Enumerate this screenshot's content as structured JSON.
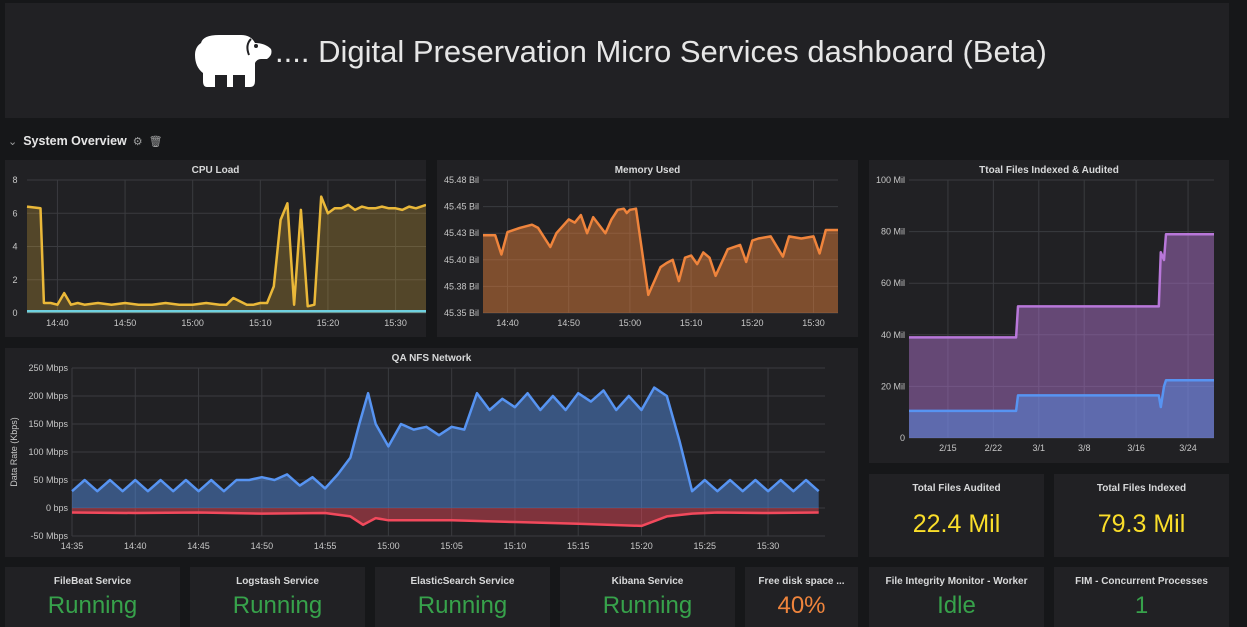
{
  "header": {
    "title": ".... Digital Preservation Micro Services dashboard (Beta)",
    "logo_icon": "elephant-icon"
  },
  "row": {
    "title": "System Overview",
    "collapse_icon": "chevron-down-icon",
    "settings_icon": "gear-icon",
    "delete_icon": "trash-icon"
  },
  "colors": {
    "yellow": "#eab839",
    "cyan": "#6ed0e0",
    "orange": "#ef843c",
    "blue": "#5794f2",
    "red": "#f2495c",
    "purple": "#b877d9",
    "green": "#37a24b"
  },
  "panels": {
    "cpu": {
      "title": "CPU Load"
    },
    "mem": {
      "title": "Memory Used"
    },
    "files": {
      "title": "Ttoal Files Indexed & Audited"
    },
    "net": {
      "title": "QA NFS Network"
    }
  },
  "stats": [
    {
      "label": "Total Files Audited",
      "value": "22.4 Mil",
      "color": "#fade2a"
    },
    {
      "label": "Total Files Indexed",
      "value": "79.3 Mil",
      "color": "#fade2a"
    },
    {
      "label": "FileBeat Service",
      "value": "Running",
      "color": "#37a24b"
    },
    {
      "label": "Logstash Service",
      "value": "Running",
      "color": "#37a24b"
    },
    {
      "label": "ElasticSearch Service",
      "value": "Running",
      "color": "#37a24b"
    },
    {
      "label": "Kibana Service",
      "value": "Running",
      "color": "#37a24b"
    },
    {
      "label": "Free disk space ...",
      "value": "40%",
      "color": "#ef843c"
    },
    {
      "label": "File Integrity Monitor - Worker",
      "value": "Idle",
      "color": "#37a24b"
    },
    {
      "label": "FIM - Concurrent Processes",
      "value": "1",
      "color": "#37a24b"
    }
  ],
  "chart_data": [
    {
      "id": "cpu",
      "type": "line",
      "title": "CPU Load",
      "xticks": [
        "14:40",
        "14:50",
        "15:00",
        "15:10",
        "15:20",
        "15:30"
      ],
      "xtick_minutes": [
        40,
        50,
        60,
        70,
        80,
        90
      ],
      "xlim": [
        35.5,
        94.5
      ],
      "yticks": [
        "8",
        "6",
        "4",
        "2",
        "0"
      ],
      "ytick_values": [
        8,
        6,
        4,
        2,
        0
      ],
      "ylim": [
        0,
        8
      ],
      "series": [
        {
          "color": "#eab839",
          "fill": true,
          "x": [
            35.5,
            37.5,
            38,
            39,
            40,
            41,
            42,
            43,
            44,
            46,
            48,
            50,
            52,
            54,
            56,
            58,
            60,
            62,
            64,
            65,
            66,
            68,
            69,
            70,
            71,
            72,
            73,
            74,
            75,
            76,
            77,
            78,
            79,
            80,
            81,
            82,
            83,
            84,
            85,
            86,
            87,
            88,
            89,
            90,
            91,
            92,
            93,
            94.5
          ],
          "y": [
            6.4,
            6.3,
            0.6,
            0.6,
            0.5,
            1.2,
            0.5,
            0.6,
            0.5,
            0.6,
            0.5,
            0.6,
            0.5,
            0.5,
            0.6,
            0.5,
            0.5,
            0.6,
            0.5,
            0.5,
            0.9,
            0.5,
            0.5,
            0.6,
            0.6,
            1.6,
            5.6,
            6.6,
            0.5,
            6.2,
            0.4,
            0.5,
            7.0,
            6.0,
            6.3,
            6.3,
            6.5,
            6.2,
            6.4,
            6.3,
            6.3,
            6.4,
            6.3,
            6.3,
            6.2,
            6.4,
            6.3,
            6.5
          ]
        },
        {
          "color": "#6ed0e0",
          "fill": false,
          "x": [
            35.5,
            94.5
          ],
          "y": [
            0.1,
            0.1
          ]
        }
      ]
    },
    {
      "id": "mem",
      "type": "area",
      "title": "Memory Used",
      "xticks": [
        "14:40",
        "14:50",
        "15:00",
        "15:10",
        "15:20",
        "15:30"
      ],
      "xtick_minutes": [
        40,
        50,
        60,
        70,
        80,
        90
      ],
      "xlim": [
        36,
        94
      ],
      "yticks": [
        "45.48 Bil",
        "45.45 Bil",
        "45.43 Bil",
        "45.40 Bil",
        "45.38 Bil",
        "45.35 Bil"
      ],
      "ytick_values": [
        45.475,
        45.45,
        45.425,
        45.4,
        45.375,
        45.35
      ],
      "ylim": [
        45.35,
        45.475
      ],
      "series": [
        {
          "color": "#ef843c",
          "fill": true,
          "x": [
            36,
            38,
            39,
            40,
            42,
            44,
            45,
            47,
            48,
            50,
            51,
            52,
            53,
            54,
            56,
            57,
            58,
            59,
            59.5,
            60,
            61,
            63,
            65,
            66,
            67,
            68,
            69,
            70,
            71,
            72,
            73,
            74,
            76,
            78,
            79,
            80,
            81,
            83,
            85,
            86,
            88,
            90,
            91,
            92,
            94
          ],
          "y": [
            45.423,
            45.423,
            45.405,
            45.426,
            45.43,
            45.433,
            45.43,
            45.412,
            45.425,
            45.438,
            45.435,
            45.442,
            45.425,
            45.44,
            45.425,
            45.438,
            45.447,
            45.448,
            45.444,
            45.447,
            45.448,
            45.367,
            45.393,
            45.397,
            45.4,
            45.38,
            45.402,
            45.404,
            45.396,
            45.407,
            45.402,
            45.385,
            45.41,
            45.414,
            45.398,
            45.418,
            45.42,
            45.422,
            45.403,
            45.422,
            45.42,
            45.422,
            45.406,
            45.428,
            45.428
          ]
        }
      ]
    },
    {
      "id": "files",
      "type": "area",
      "title": "Ttoal Files Indexed & Audited",
      "xticks": [
        "2/15",
        "2/22",
        "3/1",
        "3/8",
        "3/16",
        "3/24"
      ],
      "xtick_days": [
        15,
        22,
        29,
        36,
        44,
        52
      ],
      "xlim": [
        9,
        56
      ],
      "yticks": [
        "100 Mil",
        "80 Mil",
        "60 Mil",
        "40 Mil",
        "20 Mil",
        "0"
      ],
      "ytick_values": [
        100,
        80,
        60,
        40,
        20,
        0
      ],
      "ylim": [
        0,
        100
      ],
      "series": [
        {
          "color": "#b877d9",
          "fill": true,
          "x": [
            9,
            25.5,
            25.8,
            47.5,
            47.8,
            48.3,
            48.6,
            56
          ],
          "y": [
            39,
            39,
            51,
            51,
            72,
            69,
            79,
            79
          ]
        },
        {
          "color": "#5794f2",
          "fill": true,
          "x": [
            9,
            25.5,
            25.8,
            47.5,
            47.8,
            48.3,
            48.6,
            56
          ],
          "y": [
            10.5,
            10.5,
            16.5,
            16.5,
            12,
            20,
            22.4,
            22.4
          ]
        }
      ]
    },
    {
      "id": "net",
      "type": "area",
      "title": "QA NFS Network",
      "ylabel": "Data Rate (Kbps)",
      "xticks": [
        "14:35",
        "14:40",
        "14:45",
        "14:50",
        "14:55",
        "15:00",
        "15:05",
        "15:10",
        "15:15",
        "15:20",
        "15:25",
        "15:30"
      ],
      "xtick_minutes": [
        35,
        40,
        45,
        50,
        55,
        60,
        65,
        70,
        75,
        80,
        85,
        90
      ],
      "xlim": [
        35,
        94.5
      ],
      "yticks": [
        "250 Mbps",
        "200 Mbps",
        "150 Mbps",
        "100 Mbps",
        "50 Mbps",
        "0 bps",
        "-50 Mbps"
      ],
      "ytick_values": [
        250,
        200,
        150,
        100,
        50,
        0,
        -50
      ],
      "ylim": [
        -50,
        250
      ],
      "series": [
        {
          "color": "#5794f2",
          "fill": true,
          "x": [
            35,
            36,
            37,
            38,
            39,
            40,
            41,
            42,
            43,
            44,
            45,
            46,
            47,
            48,
            49,
            50,
            51,
            52,
            53,
            54,
            55,
            56,
            57,
            57.7,
            58.4,
            59,
            60,
            61,
            62,
            63,
            64,
            65,
            66,
            67,
            68,
            69,
            70,
            71,
            72,
            73,
            74,
            75,
            76,
            77,
            78,
            79,
            80,
            81,
            82,
            83,
            84,
            85,
            86,
            87,
            88,
            89,
            90,
            91,
            92,
            93,
            94
          ],
          "y": [
            30,
            50,
            30,
            50,
            30,
            50,
            30,
            50,
            30,
            50,
            30,
            50,
            30,
            50,
            50,
            55,
            50,
            60,
            40,
            55,
            35,
            60,
            90,
            150,
            205,
            150,
            110,
            150,
            140,
            145,
            130,
            145,
            140,
            205,
            175,
            195,
            180,
            205,
            175,
            200,
            175,
            205,
            190,
            210,
            175,
            200,
            175,
            215,
            200,
            120,
            30,
            50,
            30,
            50,
            30,
            50,
            30,
            50,
            30,
            50,
            30
          ]
        },
        {
          "color": "#f2495c",
          "fill": true,
          "x": [
            35,
            40,
            45,
            50,
            55,
            57,
            58,
            59,
            60,
            65,
            70,
            75,
            80,
            82,
            84,
            86,
            90,
            94
          ],
          "y": [
            -8,
            -9,
            -8,
            -10,
            -9,
            -15,
            -30,
            -18,
            -22,
            -22,
            -25,
            -28,
            -32,
            -15,
            -10,
            -8,
            -9,
            -8
          ]
        }
      ]
    }
  ]
}
